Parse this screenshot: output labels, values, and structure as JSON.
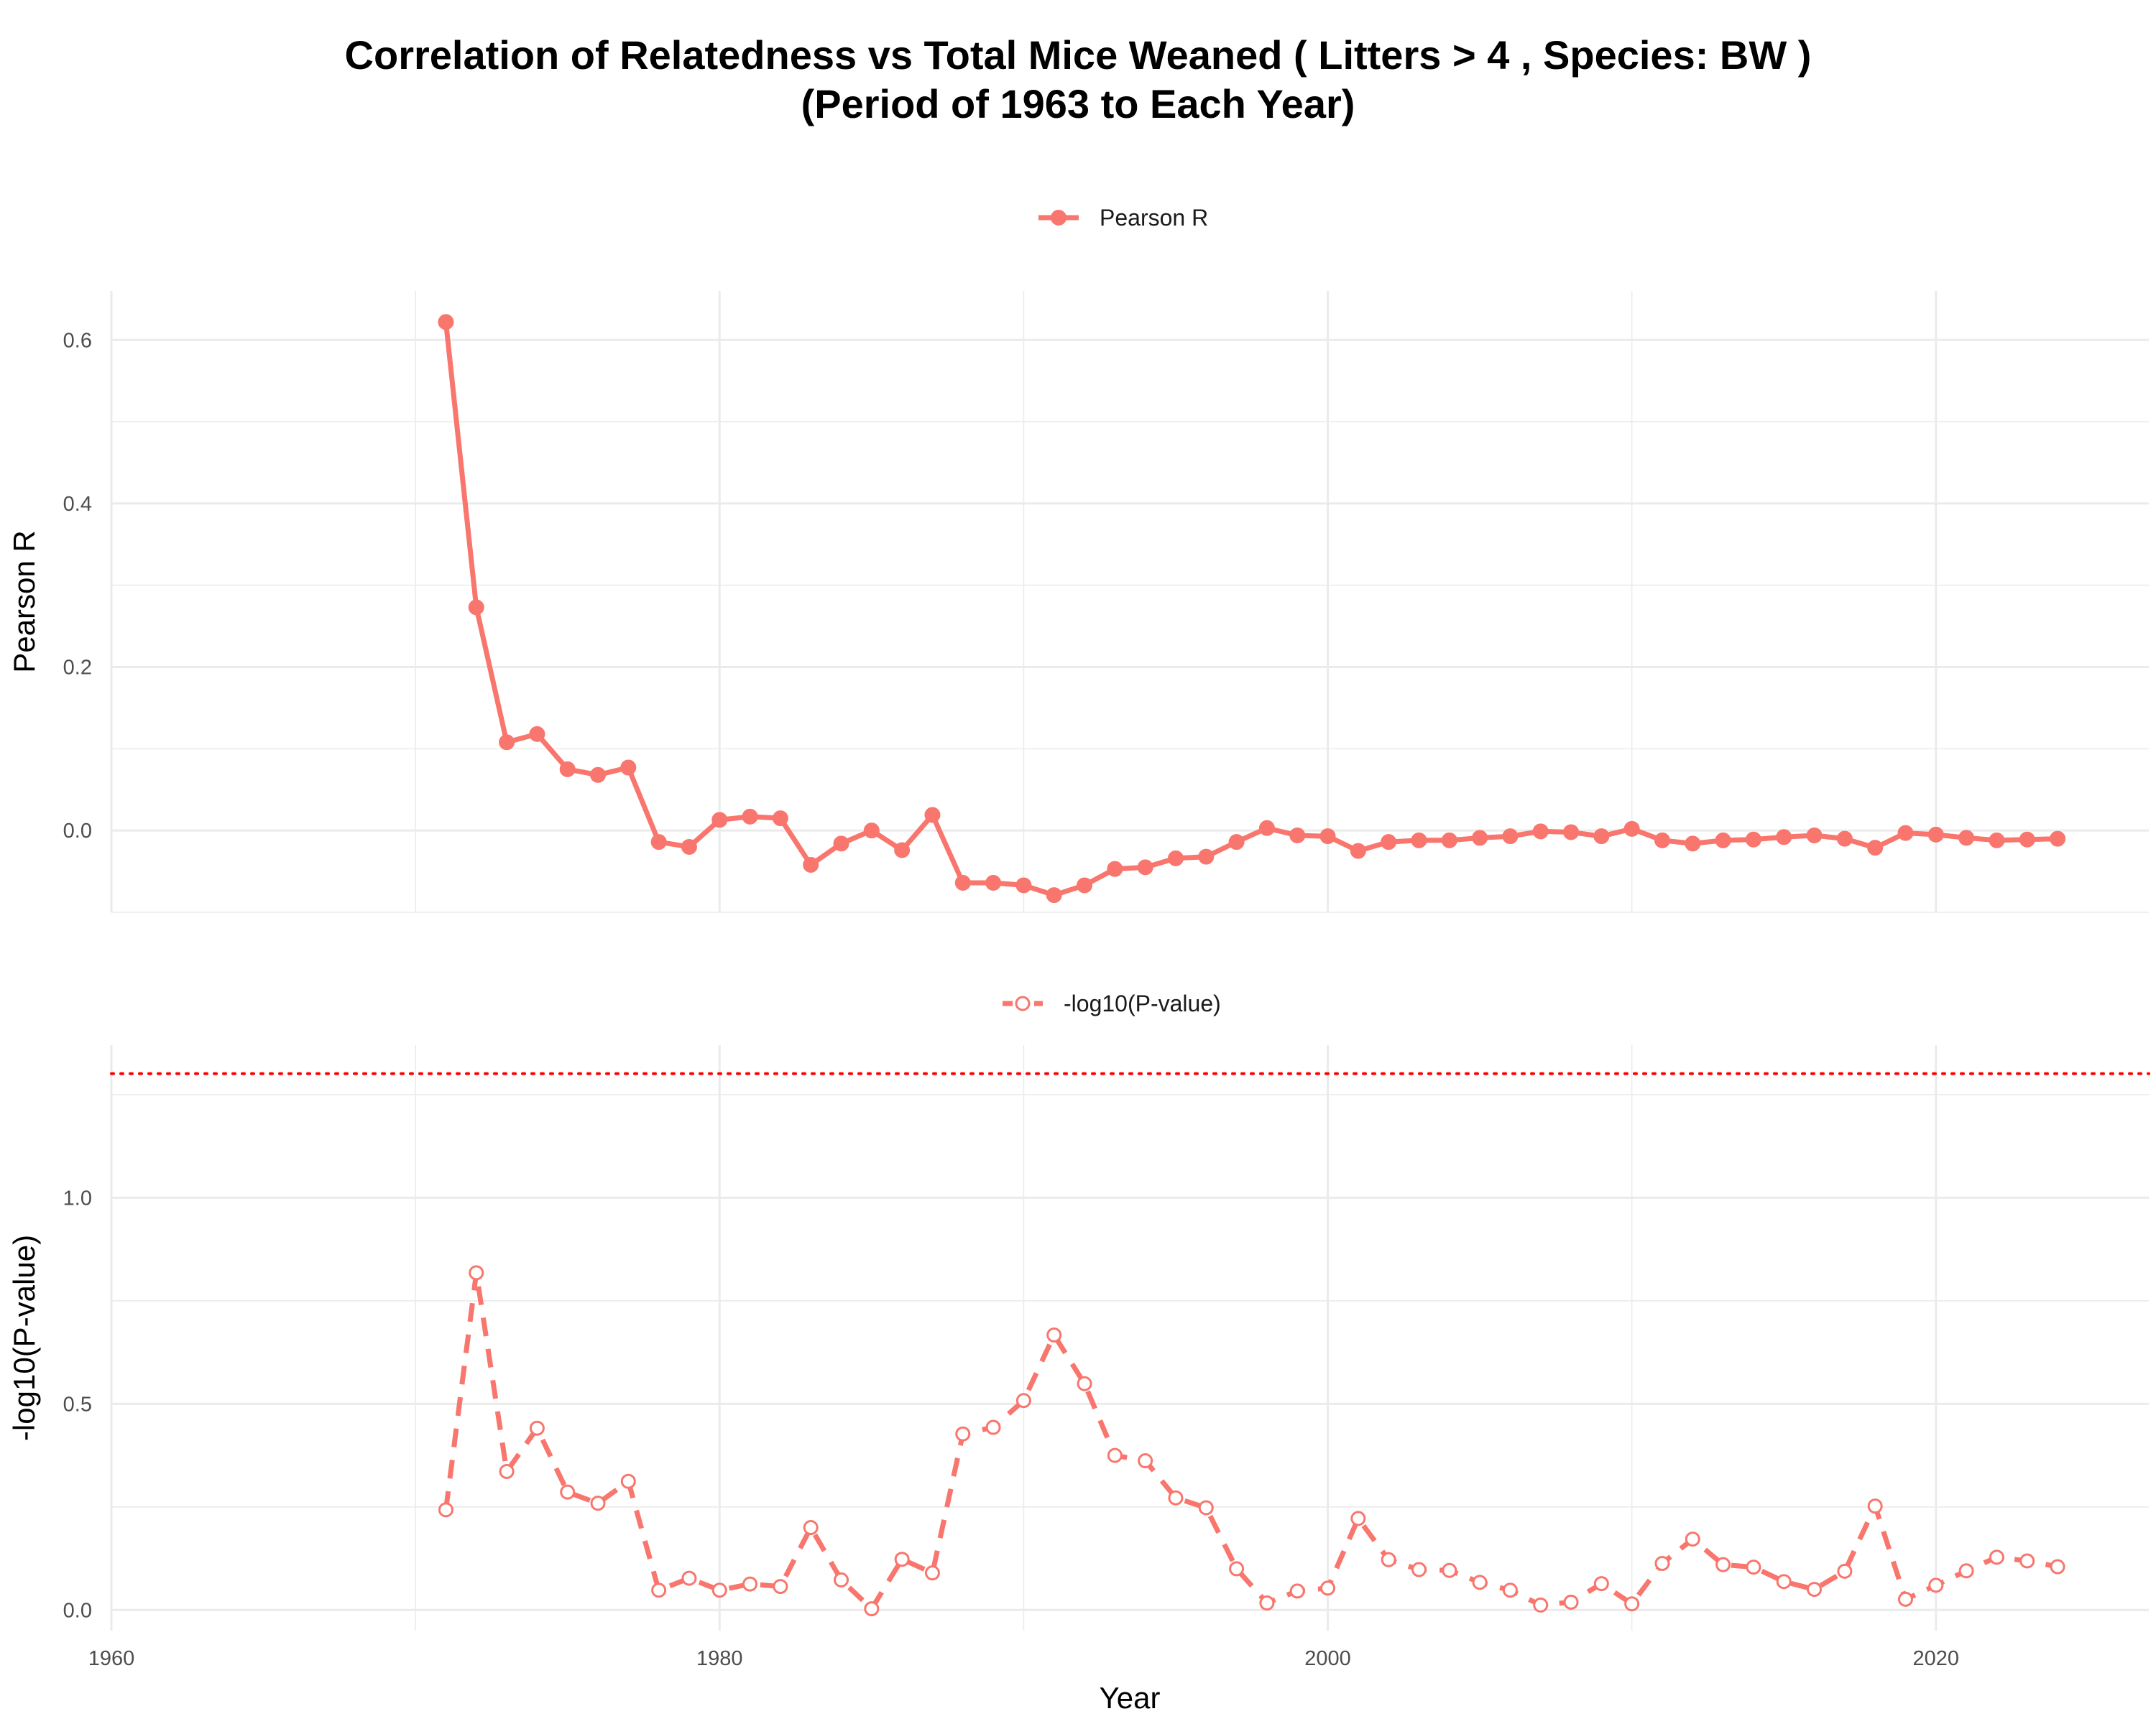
{
  "title_line1": "Correlation of Relatedness vs Total Mice Weaned ( Litters > 4 , Species: BW )",
  "title_line2": "(Period of 1963 to Each Year)",
  "colors": {
    "series": "#f8766d",
    "threshold": "#ff0000",
    "grid": "#ebebeb"
  },
  "chart_data": [
    {
      "type": "line",
      "legend": "Pearson R",
      "legend_placement": "top",
      "xlabel": "",
      "ylabel": "Pearson R",
      "xlim": [
        1960,
        2027
      ],
      "ylim": [
        -0.1,
        0.66
      ],
      "yticks": [
        0.0,
        0.2,
        0.4,
        0.6
      ],
      "ytick_labels": [
        "0.0",
        "0.2",
        "0.4",
        "0.6"
      ],
      "grid": true,
      "marker": "filled-circle",
      "line_style": "solid",
      "x": [
        1971,
        1972,
        1973,
        1974,
        1975,
        1976,
        1977,
        1978,
        1979,
        1980,
        1981,
        1982,
        1983,
        1984,
        1985,
        1986,
        1987,
        1988,
        1989,
        1990,
        1991,
        1992,
        1993,
        1994,
        1995,
        1996,
        1997,
        1998,
        1999,
        2000,
        2001,
        2002,
        2003,
        2004,
        2005,
        2006,
        2007,
        2008,
        2009,
        2010,
        2011,
        2012,
        2013,
        2014,
        2015,
        2016,
        2017,
        2018,
        2019,
        2020,
        2021,
        2022,
        2023,
        2024
      ],
      "values": [
        0.622,
        0.273,
        0.108,
        0.118,
        0.075,
        0.068,
        0.077,
        -0.014,
        -0.02,
        0.013,
        0.017,
        0.015,
        -0.042,
        -0.016,
        0.0,
        -0.024,
        0.019,
        -0.064,
        -0.064,
        -0.067,
        -0.079,
        -0.067,
        -0.047,
        -0.045,
        -0.034,
        -0.032,
        -0.014,
        0.003,
        -0.006,
        -0.007,
        -0.025,
        -0.014,
        -0.012,
        -0.012,
        -0.009,
        -0.007,
        -0.001,
        -0.002,
        -0.007,
        0.002,
        -0.012,
        -0.016,
        -0.012,
        -0.011,
        -0.008,
        -0.006,
        -0.01,
        -0.021,
        -0.003,
        -0.005,
        -0.009,
        -0.012,
        -0.011,
        -0.01
      ]
    },
    {
      "type": "line",
      "legend": "-log10(P-value)",
      "legend_placement": "top",
      "xlabel": "Year",
      "ylabel": "-log10(P-value)",
      "xlim": [
        1960,
        2027
      ],
      "ylim": [
        -0.05,
        1.37
      ],
      "yticks": [
        0.0,
        0.5,
        1.0
      ],
      "ytick_labels": [
        "0.0",
        "0.5",
        "1.0"
      ],
      "xticks": [
        1960,
        1980,
        2000,
        2020
      ],
      "xtick_labels": [
        "1960",
        "1980",
        "2000",
        "2020"
      ],
      "threshold": 1.301,
      "grid": true,
      "marker": "open-circle",
      "line_style": "dashed",
      "x": [
        1971,
        1972,
        1973,
        1974,
        1975,
        1976,
        1977,
        1978,
        1979,
        1980,
        1981,
        1982,
        1983,
        1984,
        1985,
        1986,
        1987,
        1988,
        1989,
        1990,
        1991,
        1992,
        1993,
        1994,
        1995,
        1996,
        1997,
        1998,
        1999,
        2000,
        2001,
        2002,
        2003,
        2004,
        2005,
        2006,
        2007,
        2008,
        2009,
        2010,
        2011,
        2012,
        2013,
        2014,
        2015,
        2016,
        2017,
        2018,
        2019,
        2020,
        2021,
        2022,
        2023,
        2024
      ],
      "values": [
        0.243,
        0.818,
        0.336,
        0.441,
        0.286,
        0.259,
        0.312,
        0.048,
        0.077,
        0.048,
        0.063,
        0.057,
        0.2,
        0.073,
        0.003,
        0.123,
        0.09,
        0.427,
        0.443,
        0.508,
        0.667,
        0.549,
        0.375,
        0.362,
        0.272,
        0.248,
        0.1,
        0.017,
        0.046,
        0.053,
        0.222,
        0.122,
        0.098,
        0.096,
        0.067,
        0.048,
        0.012,
        0.019,
        0.064,
        0.015,
        0.113,
        0.172,
        0.11,
        0.104,
        0.069,
        0.05,
        0.094,
        0.252,
        0.026,
        0.06,
        0.095,
        0.128,
        0.119,
        0.105
      ]
    }
  ]
}
